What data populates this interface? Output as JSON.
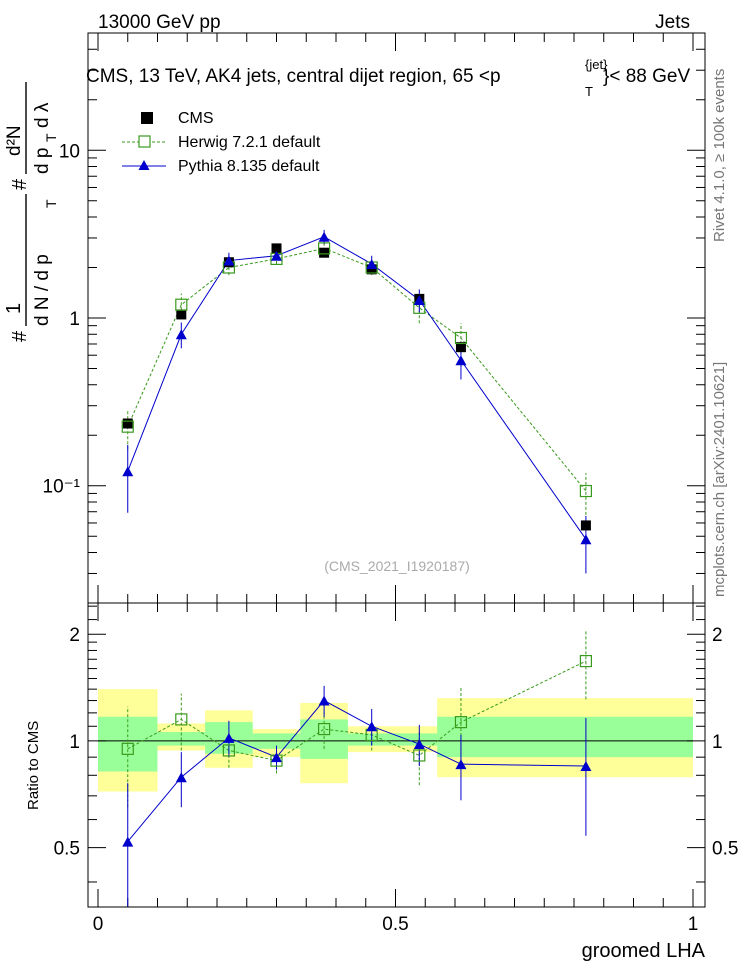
{
  "header": {
    "left": "13000 GeV pp",
    "right": "Jets"
  },
  "side_texts": {
    "rivet": "Rivet 4.1.0, ≥ 100k events",
    "mcplots": "mcplots.cern.ch [arXiv:2401.10621]"
  },
  "watermark": "(CMS_2021_I1920187)",
  "chart_data": {
    "type": "line",
    "title": "CMS, 13 TeV, AK4 jets, central dijet region, 65 <p_T^{jet}< 88 GeV",
    "title_parts": {
      "main": "CMS, 13 TeV, AK4 jets, central dijet region, 65 <p",
      "sup": "{jet}",
      "sub": "T",
      "tail": "}< 88 GeV"
    },
    "xlabel": "groomed LHA",
    "ylabel": "# 1/(dN / dp_T) # d²N/(dp_T dλ)",
    "ylabel_parts": {
      "hash": "#",
      "one": "1",
      "dN": "d N / d p",
      "T": "T",
      "d2N": "d²N",
      "dp": "d p",
      "dlam": "d λ"
    },
    "xlim": [
      0,
      1
    ],
    "ylim": [
      0.02,
      50
    ],
    "yscale": "log",
    "x_ticks": [
      "0",
      "0.5",
      "1"
    ],
    "x_tick_values": [
      0,
      0.5,
      1
    ],
    "y_ticks": [
      "10⁻¹",
      "1",
      "10"
    ],
    "y_tick_values": [
      0.1,
      1,
      10
    ],
    "legend": [
      "CMS",
      "Herwig 7.2.1 default",
      "Pythia 8.135 default"
    ],
    "legend_position": "top-left",
    "colors": {
      "cms": "#000000",
      "herwig": "#3a9a1e",
      "pythia": "#0000cc",
      "band_outer": "#ffff99",
      "band_inner": "#99ff99"
    },
    "cms": {
      "name": "CMS",
      "x": [
        0.05,
        0.14,
        0.22,
        0.3,
        0.38,
        0.46,
        0.54,
        0.61,
        0.82
      ],
      "values": [
        0.235,
        1.05,
        2.15,
        2.6,
        2.45,
        1.95,
        1.3,
        0.67,
        0.058
      ]
    },
    "series": [
      {
        "name": "Herwig 7.2.1 default",
        "x": [
          0.05,
          0.14,
          0.22,
          0.3,
          0.38,
          0.46,
          0.54,
          0.61,
          0.82
        ],
        "values": [
          0.225,
          1.2,
          2.0,
          2.25,
          2.6,
          2.0,
          1.15,
          0.76,
          0.093
        ],
        "err_low": [
          0.06,
          0.16,
          0.2,
          0.15,
          0.25,
          0.2,
          0.22,
          0.15,
          0.026
        ],
        "err_high": [
          0.06,
          0.2,
          0.2,
          0.15,
          0.25,
          0.2,
          0.22,
          0.17,
          0.026
        ]
      },
      {
        "name": "Pythia 8.135 default",
        "x": [
          0.05,
          0.14,
          0.22,
          0.3,
          0.38,
          0.46,
          0.54,
          0.61,
          0.82
        ],
        "values": [
          0.122,
          0.8,
          2.2,
          2.35,
          3.05,
          2.1,
          1.28,
          0.56,
          0.048
        ],
        "err_low": [
          0.053,
          0.14,
          0.2,
          0.15,
          0.3,
          0.25,
          0.2,
          0.13,
          0.018
        ],
        "err_high": [
          0.053,
          0.14,
          0.25,
          0.15,
          0.3,
          0.25,
          0.2,
          0.13,
          0.018
        ]
      }
    ],
    "ratio": {
      "ylabel": "Ratio to CMS",
      "ylim": [
        0.34,
        2.45
      ],
      "y_ticks": [
        "0.5",
        "1",
        "2"
      ],
      "y_tick_values": [
        0.5,
        1,
        2
      ],
      "bins": [
        0,
        0.1,
        0.18,
        0.26,
        0.34,
        0.42,
        0.5,
        0.57,
        1.0
      ],
      "band_outer_low": [
        0.72,
        0.94,
        0.84,
        0.9,
        0.76,
        0.93,
        0.93,
        0.79
      ],
      "band_outer_high": [
        1.4,
        1.12,
        1.22,
        1.08,
        1.28,
        1.1,
        1.1,
        1.32
      ],
      "band_inner_low": [
        0.82,
        0.97,
        0.92,
        0.95,
        0.89,
        0.97,
        0.97,
        0.9
      ],
      "band_inner_high": [
        1.17,
        1.06,
        1.13,
        1.05,
        1.15,
        1.05,
        1.05,
        1.17
      ],
      "herwig": [
        0.95,
        1.15,
        0.94,
        0.88,
        1.08,
        1.04,
        0.91,
        1.13,
        1.68
      ],
      "herwig_err": [
        0.3,
        0.21,
        0.1,
        0.07,
        0.13,
        0.1,
        0.16,
        0.28,
        0.37
      ],
      "pythia": [
        0.52,
        0.79,
        1.02,
        0.9,
        1.3,
        1.1,
        0.98,
        0.86,
        0.85
      ],
      "pythia_err": [
        0.24,
        0.14,
        0.12,
        0.07,
        0.13,
        0.13,
        0.13,
        0.18,
        0.31
      ]
    }
  }
}
